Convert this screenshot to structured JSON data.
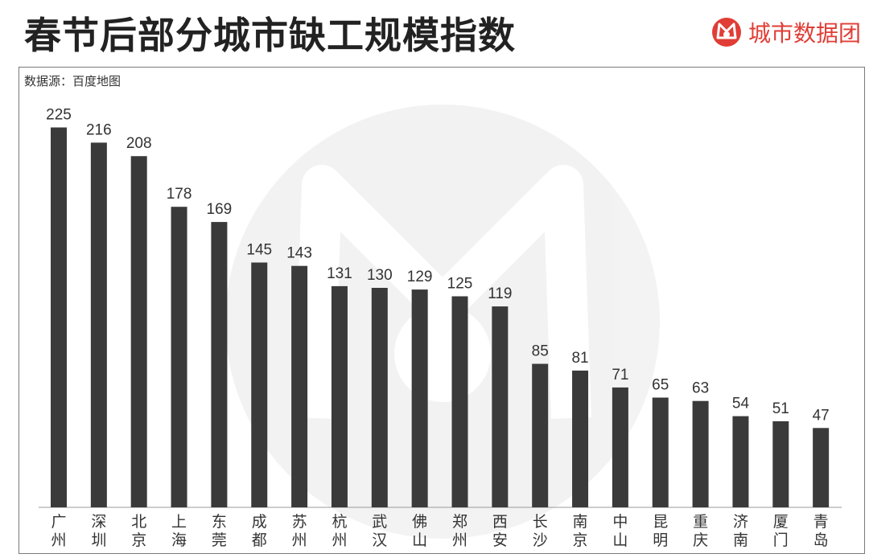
{
  "title": "春节后部分城市缺工规模指数",
  "brand": {
    "name": "城市数据团",
    "color": "#e03d36",
    "icon": "mask-logo-icon"
  },
  "source": "数据源：百度地图",
  "chart_data": {
    "type": "bar",
    "title": "春节后部分城市缺工规模指数",
    "categories": [
      "广州",
      "深圳",
      "北京",
      "上海",
      "东莞",
      "成都",
      "苏州",
      "杭州",
      "武汉",
      "佛山",
      "郑州",
      "西安",
      "长沙",
      "南京",
      "中山",
      "昆明",
      "重庆",
      "济南",
      "厦门",
      "青岛"
    ],
    "values": [
      225,
      216,
      208,
      178,
      169,
      145,
      143,
      131,
      130,
      129,
      125,
      119,
      85,
      81,
      71,
      65,
      63,
      54,
      51,
      47
    ],
    "xlabel": "",
    "ylabel": "",
    "ylim": [
      0,
      250
    ],
    "grid": false,
    "legend": "none",
    "bar_color": "#3a3a3a",
    "value_labels": true,
    "watermark": "mask-logo-watermark"
  }
}
